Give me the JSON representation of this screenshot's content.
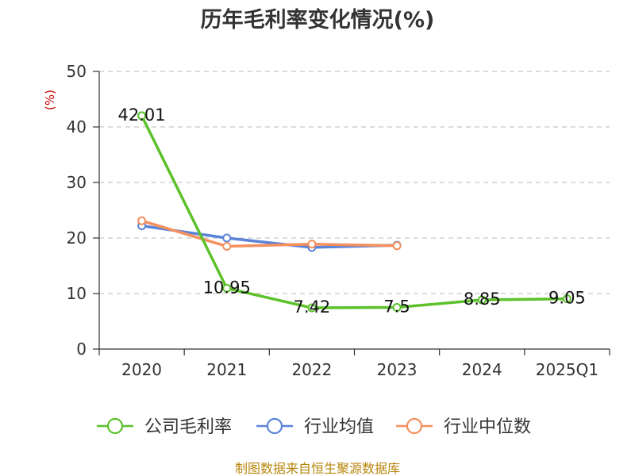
{
  "chart_data": {
    "type": "line",
    "title": "历年毛利率变化情况(%)",
    "ylabel": "(%)",
    "ylim": [
      0,
      50
    ],
    "yticks": [
      0,
      10,
      20,
      30,
      40,
      50
    ],
    "categories": [
      "2020",
      "2021",
      "2022",
      "2023",
      "2024",
      "2025Q1"
    ],
    "grid": true,
    "legend": "bottom",
    "series": [
      {
        "name": "公司毛利率",
        "color": "#5cc12a",
        "values": [
          42.01,
          10.95,
          7.42,
          7.5,
          8.85,
          9.05
        ],
        "labels": [
          "42.01",
          "10.95",
          "7.42",
          "7.5",
          "8.85",
          "9.05"
        ]
      },
      {
        "name": "行业均值",
        "color": "#5b84d8",
        "values": [
          22.2,
          20.0,
          18.3,
          18.7,
          null,
          null
        ]
      },
      {
        "name": "行业中位数",
        "color": "#f4905e",
        "values": [
          23.1,
          18.5,
          18.9,
          18.6,
          null,
          null
        ]
      }
    ]
  },
  "source_text": "制图数据来自恒生聚源数据库"
}
